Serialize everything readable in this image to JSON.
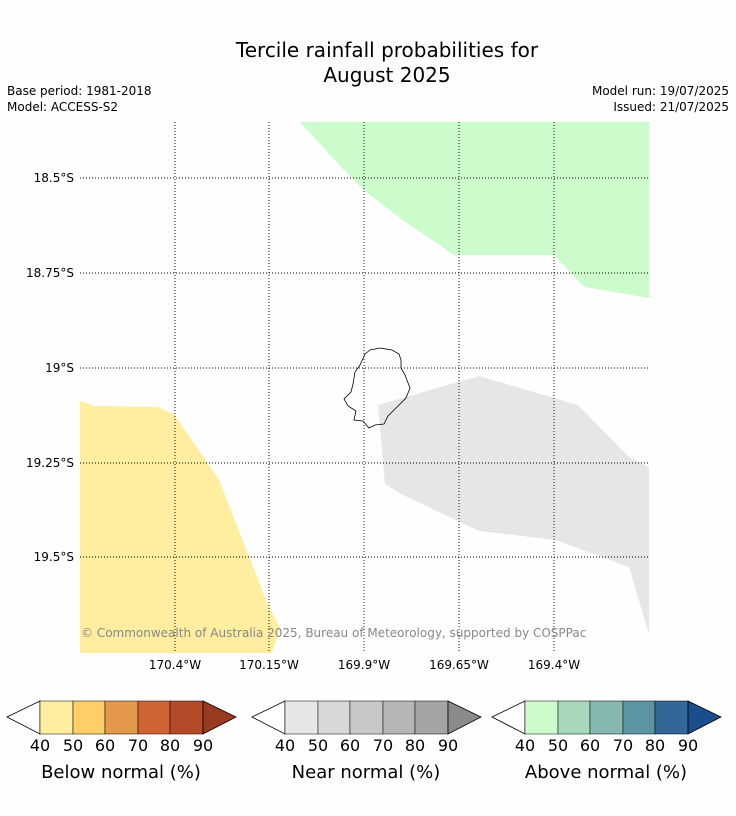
{
  "title_line1": "Tercile rainfall probabilities for",
  "title_line2": "August 2025",
  "base_period": "Base period: 1981-2018",
  "model": "Model: ACCESS-S2",
  "model_run": "Model run: 19/07/2025",
  "issued": "Issued: 21/07/2025",
  "map": {
    "lat_labels": [
      "18.5°S",
      "18.75°S",
      "19°S",
      "19.25°S",
      "19.5°S"
    ],
    "lon_labels": [
      "170.4°W",
      "170.15°W",
      "169.9°W",
      "169.65°W",
      "169.4°W"
    ],
    "copyright": "© Commonwealth of Australia 2025, Bureau of Meteorology, supported by COSPPac",
    "regions": [
      {
        "category": "Above normal",
        "band": "40-50",
        "color": "#ccfccc"
      },
      {
        "category": "Below normal",
        "band": "40-50",
        "color": "#ffeda0"
      },
      {
        "category": "Near normal",
        "band": "40-50",
        "color": "#e6e6e6"
      }
    ]
  },
  "colorbars": [
    {
      "title": "Below normal (%)",
      "ticks": [
        "40",
        "50",
        "60",
        "70",
        "80",
        "90"
      ],
      "colors": [
        "#ffeda0",
        "#fecf66",
        "#e3984a",
        "#cf6432",
        "#b34a28"
      ],
      "extend_color": "#9a3a20"
    },
    {
      "title": "Near normal (%)",
      "ticks": [
        "40",
        "50",
        "60",
        "70",
        "80",
        "90"
      ],
      "colors": [
        "#e6e6e6",
        "#d8d8d8",
        "#c8c8c8",
        "#b6b6b6",
        "#a4a4a4"
      ],
      "extend_color": "#8a8a8a"
    },
    {
      "title": "Above normal (%)",
      "ticks": [
        "40",
        "50",
        "60",
        "70",
        "80",
        "90"
      ],
      "colors": [
        "#ccfccc",
        "#a8d8bc",
        "#84b8b0",
        "#5c94a4",
        "#346698"
      ],
      "extend_color": "#1a4e8a"
    }
  ]
}
